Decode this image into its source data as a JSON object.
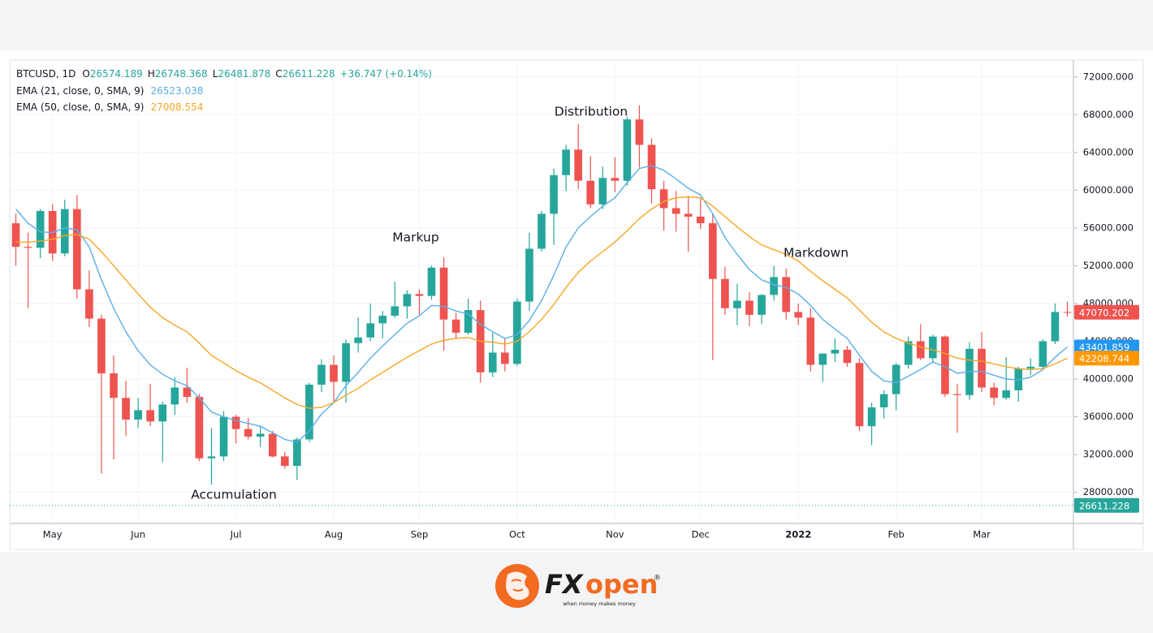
{
  "chart_data": {
    "type": "candlestick",
    "header": {
      "symbol": "BTCUSD, 1D",
      "ohlc": [
        {
          "key": "O",
          "value": "26574.189"
        },
        {
          "key": "H",
          "value": "26748.368"
        },
        {
          "key": "L",
          "value": "26481.878"
        },
        {
          "key": "C",
          "value": "26611.228"
        }
      ],
      "change": "+36.747 (+0.14%)"
    },
    "categories": [
      null,
      null,
      null,
      "May",
      null,
      null,
      null,
      null,
      null,
      null,
      "Jun",
      null,
      null,
      null,
      null,
      null,
      null,
      null,
      "Jul",
      null,
      null,
      null,
      null,
      null,
      null,
      null,
      "Aug",
      null,
      null,
      null,
      null,
      null,
      null,
      "Sep",
      null,
      null,
      null,
      null,
      null,
      null,
      null,
      "Oct",
      null,
      null,
      null,
      null,
      null,
      null,
      null,
      "Nov",
      null,
      null,
      null,
      null,
      null,
      null,
      "Dec",
      null,
      null,
      null,
      null,
      null,
      null,
      null,
      "2022",
      null,
      null,
      null,
      null,
      null,
      null,
      null,
      "Feb",
      null,
      null,
      null,
      null,
      null,
      null,
      "Mar",
      null,
      null,
      null,
      null,
      null,
      null,
      null
    ],
    "open": [
      56500,
      54000,
      53900,
      57800,
      53300,
      58000,
      49500,
      46400,
      40600,
      38000,
      35700,
      36700,
      35500,
      37300,
      39100,
      38100,
      31600,
      31800,
      36000,
      34700,
      33900,
      34200,
      31800,
      30800,
      33600,
      39400,
      41500,
      39700,
      43800,
      44400,
      45900,
      46700,
      47700,
      49000,
      48800,
      51800,
      46300,
      44900,
      47300,
      40700,
      42800,
      41600,
      48200,
      53800,
      57500,
      61600,
      64300,
      61000,
      58500,
      61300,
      61000,
      67500,
      64800,
      60100,
      58100,
      57500,
      57200,
      56500,
      50600,
      47500,
      48300,
      46800,
      48900,
      50800,
      47100,
      46500,
      41500,
      42700,
      43100,
      41700,
      35000,
      37000,
      38400,
      41500,
      44000,
      42200,
      44500,
      38400,
      38300,
      43200,
      39100,
      38000,
      38800,
      41100,
      41300,
      44000,
      47100
    ],
    "high": [
      57500,
      55500,
      58000,
      58500,
      59000,
      59500,
      51500,
      46800,
      42500,
      39800,
      38000,
      39500,
      37600,
      40200,
      41200,
      38400,
      34800,
      36600,
      36200,
      35900,
      35000,
      34500,
      32300,
      33800,
      39600,
      42100,
      42500,
      44200,
      46500,
      48000,
      47200,
      50300,
      49400,
      49500,
      52000,
      52900,
      47000,
      48500,
      48300,
      44900,
      44300,
      48500,
      55500,
      57800,
      62300,
      64800,
      67000,
      63600,
      62500,
      63500,
      67800,
      69000,
      65500,
      61000,
      59900,
      59400,
      59100,
      57500,
      51900,
      50100,
      49200,
      49000,
      52000,
      51700,
      48000,
      47500,
      42700,
      44300,
      43500,
      42200,
      37500,
      38800,
      41700,
      44500,
      45800,
      44700,
      44600,
      39500,
      43900,
      45000,
      39600,
      42300,
      41300,
      42200,
      44200,
      48000,
      48200
    ],
    "low": [
      52000,
      47500,
      52800,
      52500,
      53000,
      48500,
      45500,
      30000,
      31500,
      34000,
      34800,
      35000,
      31200,
      36200,
      37500,
      31300,
      28800,
      31300,
      33200,
      33600,
      32800,
      31700,
      30500,
      29300,
      33300,
      38600,
      37600,
      37500,
      42800,
      44000,
      44300,
      46500,
      46400,
      46800,
      48400,
      43000,
      44300,
      44700,
      39600,
      40200,
      40800,
      41400,
      47200,
      53500,
      54200,
      59900,
      60100,
      58100,
      58000,
      59800,
      60500,
      62400,
      58600,
      55700,
      55600,
      53500,
      55900,
      42000,
      46800,
      45700,
      45600,
      45800,
      48300,
      46300,
      45700,
      40800,
      39700,
      41800,
      41300,
      34500,
      33000,
      35800,
      36700,
      41100,
      42000,
      41700,
      38100,
      34300,
      37800,
      38600,
      37200,
      37800,
      37600,
      40400,
      41000,
      43700,
      46600
    ],
    "close": [
      54000,
      53900,
      57800,
      53300,
      58000,
      49500,
      46400,
      40600,
      38000,
      35700,
      36700,
      35500,
      37300,
      39100,
      38100,
      31600,
      31800,
      36000,
      34700,
      33900,
      34200,
      31800,
      30800,
      33600,
      39400,
      41500,
      39700,
      43800,
      44400,
      45900,
      46700,
      47700,
      49000,
      48800,
      51800,
      46300,
      44900,
      47300,
      40700,
      42800,
      41600,
      48200,
      53800,
      57500,
      61600,
      64300,
      61000,
      58500,
      61300,
      61000,
      67500,
      64800,
      60100,
      58100,
      57500,
      57200,
      56500,
      50600,
      47500,
      48300,
      46800,
      48900,
      50800,
      47100,
      46500,
      41500,
      42700,
      43100,
      41700,
      35000,
      37000,
      38400,
      41500,
      44000,
      42200,
      44500,
      38400,
      38300,
      43200,
      39100,
      38000,
      38800,
      41100,
      41300,
      44000,
      47100,
      47070
    ],
    "up_color": "#26a69a",
    "down_color": "#ef5350",
    "series": [
      {
        "name": "EMA (21, close, 0, SMA, 9)",
        "last": "26523.038",
        "color": "#5aaee8",
        "values": [
          58000,
          56500,
          55600,
          55500,
          56000,
          55800,
          54000,
          50500,
          47500,
          45000,
          43000,
          41500,
          40500,
          39800,
          39300,
          38000,
          36500,
          36000,
          35600,
          35300,
          35000,
          34300,
          33600,
          33300,
          34500,
          36300,
          37500,
          39300,
          40700,
          42200,
          43500,
          44700,
          45900,
          46700,
          47800,
          47700,
          47200,
          46900,
          45800,
          45000,
          44300,
          44700,
          46200,
          48300,
          51000,
          54000,
          56000,
          57200,
          58300,
          59200,
          60800,
          62300,
          62600,
          62100,
          61200,
          60200,
          59500,
          57500,
          55000,
          53200,
          51600,
          50500,
          50000,
          49700,
          49000,
          47800,
          46300,
          45300,
          44300,
          42500,
          40800,
          39800,
          39600,
          40300,
          41000,
          41800,
          41300,
          40600,
          40800,
          40800,
          40400,
          40000,
          39900,
          40200,
          41000,
          42300,
          43400
        ]
      },
      {
        "name": "EMA (50, close, 0, SMA, 9)",
        "last": "27008.554",
        "color": "#f5a623",
        "values": [
          54500,
          54500,
          54600,
          54800,
          55200,
          55300,
          54800,
          53500,
          52000,
          50500,
          49000,
          47600,
          46500,
          45700,
          45000,
          43800,
          42500,
          41700,
          40900,
          40200,
          39600,
          38800,
          38000,
          37300,
          36900,
          37000,
          37500,
          38300,
          39000,
          39900,
          40700,
          41500,
          42300,
          43000,
          43700,
          44100,
          44300,
          44400,
          44000,
          43900,
          43700,
          44000,
          45000,
          46300,
          47900,
          49700,
          51300,
          52500,
          53500,
          54500,
          55700,
          57000,
          58000,
          58800,
          59200,
          59300,
          59200,
          58300,
          57200,
          56100,
          55100,
          54200,
          53700,
          53200,
          52500,
          51400,
          50400,
          49500,
          48600,
          47300,
          46000,
          45000,
          44300,
          43800,
          43400,
          43100,
          42700,
          42200,
          42000,
          41900,
          41600,
          41300,
          41100,
          41000,
          41100,
          41600,
          42200
        ]
      }
    ],
    "ylim": [
      24700,
      73700
    ],
    "yticks": [
      {
        "value": 72000,
        "label": "72000.000"
      },
      {
        "value": 68000,
        "label": "68000.000"
      },
      {
        "value": 64000,
        "label": "64000.000"
      },
      {
        "value": 60000,
        "label": "60000.000"
      },
      {
        "value": 56000,
        "label": "56000.000"
      },
      {
        "value": 52000,
        "label": "52000.000"
      },
      {
        "value": 48000,
        "label": "48000.000"
      },
      {
        "value": 44000,
        "label": "44000.000"
      },
      {
        "value": 40000,
        "label": "40000.000"
      },
      {
        "value": 36000,
        "label": "36000.000"
      },
      {
        "value": 32000,
        "label": "32000.000"
      },
      {
        "value": 28000,
        "label": "28000.000"
      }
    ],
    "grid": true,
    "price_labels": [
      {
        "value": 47070.202,
        "label": "47070.202",
        "color": "#ef5350"
      },
      {
        "value": 43401.859,
        "label": "43401.859",
        "color": "#2196f3"
      },
      {
        "value": 42208.744,
        "label": "42208.744",
        "color": "#ff9800"
      },
      {
        "value": 26611.228,
        "label": "26611.228",
        "color": "#26a69a"
      }
    ],
    "annotations": [
      "Accumulation",
      "Markup",
      "Distribution",
      "Markdown"
    ]
  },
  "logo": {
    "brand_a": "FX",
    "brand_b": "open",
    "registered": "®",
    "tagline": "when money makes money"
  }
}
